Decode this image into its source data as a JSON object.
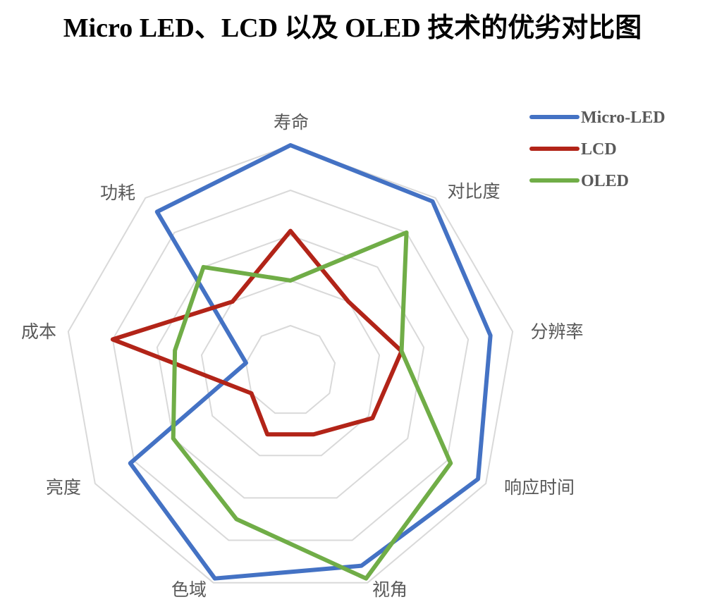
{
  "chart_data": {
    "type": "radar",
    "title": "Micro LED、LCD 以及 OLED 技术的优劣对比图",
    "categories": [
      "寿命",
      "对比度",
      "分辨率",
      "响应时间",
      "视角",
      "色域",
      "亮度",
      "成本",
      "功耗"
    ],
    "rlim": [
      0,
      5
    ],
    "grid_rings": 5,
    "grid": true,
    "legend_position": "top-right",
    "series": [
      {
        "name": "Micro-LED",
        "color": "#4472C4",
        "values": [
          5,
          4.9,
          4.5,
          4.8,
          4.6,
          4.9,
          4.1,
          1,
          4.6
        ]
      },
      {
        "name": "LCD",
        "color": "#B22418",
        "values": [
          3.1,
          2,
          2.5,
          2.1,
          1.5,
          1.5,
          1,
          4,
          2
        ]
      },
      {
        "name": "OLED",
        "color": "#70AD47",
        "values": [
          2,
          4,
          2.5,
          4.1,
          4.9,
          3.5,
          3,
          2.6,
          3
        ]
      }
    ]
  }
}
